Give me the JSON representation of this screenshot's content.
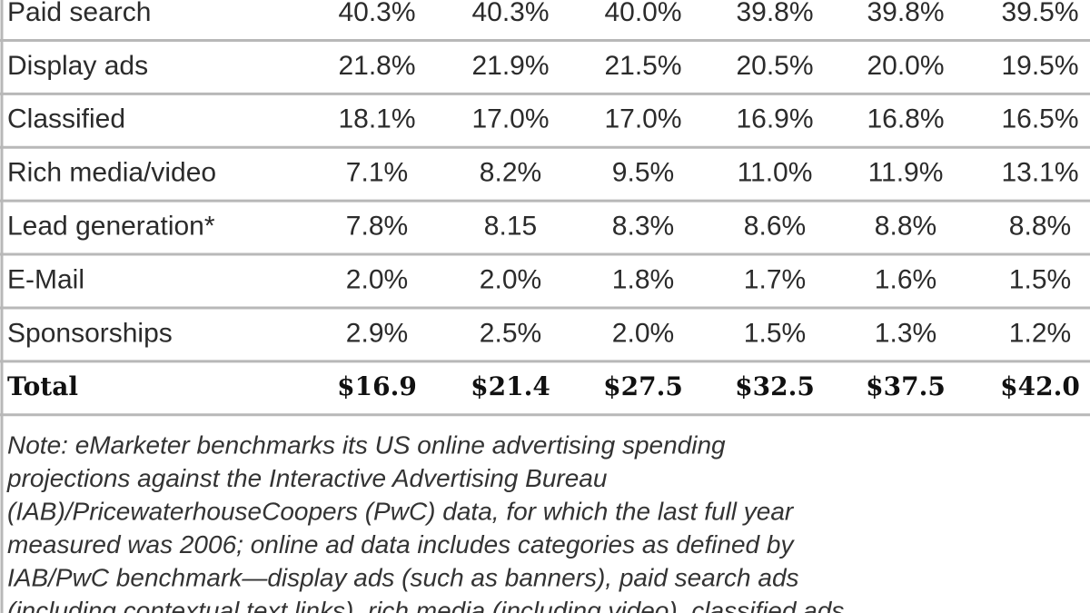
{
  "table": {
    "rows": [
      [
        "Paid search",
        "40.3%",
        "40.3%",
        "40.0%",
        "39.8%",
        "39.8%",
        "39.5%"
      ],
      [
        "Display ads",
        "21.8%",
        "21.9%",
        "21.5%",
        "20.5%",
        "20.0%",
        "19.5%"
      ],
      [
        "Classified",
        "18.1%",
        "17.0%",
        "17.0%",
        "16.9%",
        "16.8%",
        "16.5%"
      ],
      [
        "Rich media/video",
        "7.1%",
        "8.2%",
        "9.5%",
        "11.0%",
        "11.9%",
        "13.1%"
      ],
      [
        "Lead generation*",
        "7.8%",
        "8.15",
        "8.3%",
        "8.6%",
        "8.8%",
        "8.8%"
      ],
      [
        "E-Mail",
        "2.0%",
        "2.0%",
        "1.8%",
        "1.7%",
        "1.6%",
        "1.5%"
      ],
      [
        "Sponsorships",
        "2.9%",
        "2.5%",
        "2.0%",
        "1.5%",
        "1.3%",
        "1.2%"
      ]
    ],
    "total": [
      "Total",
      "$16.9",
      "$21.4",
      "$27.5",
      "$32.5",
      "$37.5",
      "$42.0"
    ]
  },
  "note": [
    "Note: eMarketer benchmarks its US online advertising spending",
    "projections against the Interactive Advertising Bureau",
    "(IAB)/PricewaterhouseCoopers (PwC) data, for which the last full year",
    "measured was 2006; online ad data includes categories as defined by",
    "IAB/PwC benchmark—display ads (such as banners), paid search ads",
    "(including contextual text links), rich media (including video), classified ads"
  ]
}
